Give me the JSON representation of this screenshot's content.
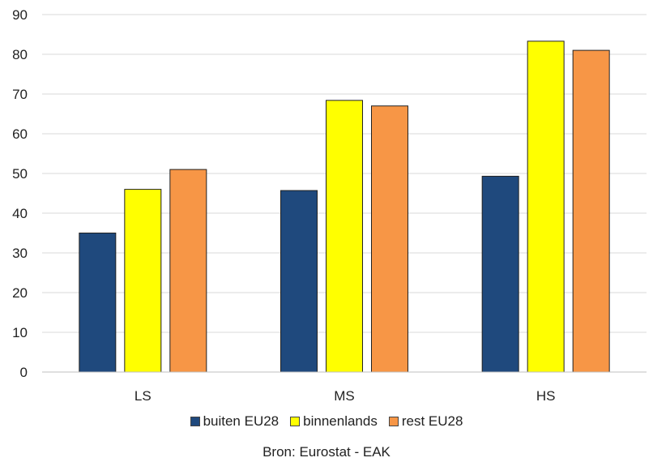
{
  "chart_data": {
    "type": "bar",
    "categories": [
      "LS",
      "MS",
      "HS"
    ],
    "series": [
      {
        "name": "buiten EU28",
        "color": "#1f497d",
        "values": [
          35,
          45.7,
          49.3
        ]
      },
      {
        "name": "binnenlands",
        "color": "#ffff00",
        "values": [
          46,
          68.4,
          83.3
        ]
      },
      {
        "name": "rest EU28",
        "color": "#f79646",
        "values": [
          51,
          67,
          81
        ]
      }
    ],
    "ylim": [
      0,
      90
    ],
    "yticks": [
      "0",
      "10",
      "20",
      "30",
      "40",
      "50",
      "60",
      "70",
      "80",
      "90"
    ],
    "grid": true,
    "legend_position": "bottom",
    "source": "Bron: Eurostat - EAK"
  }
}
